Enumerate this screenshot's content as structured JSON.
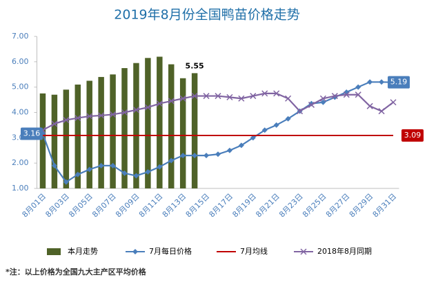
{
  "chart_data": {
    "type": "combo",
    "title": "2019年8月份全国鸭苗价格走势",
    "footnote": "*注：以上价格为全国九大主产区平均价格",
    "categories": [
      "8月01日",
      null,
      "8月03日",
      null,
      "8月05日",
      null,
      "8月07日",
      null,
      "8月09日",
      null,
      "8月11日",
      null,
      "8月13日",
      null,
      "8月15日",
      null,
      "8月17日",
      null,
      "8月19日",
      null,
      "8月21日",
      null,
      "8月23日",
      null,
      "8月25日",
      null,
      "8月27日",
      null,
      "8月29日",
      null,
      "8月31日"
    ],
    "ylim": [
      1,
      7
    ],
    "yticks": [
      {
        "value": 1,
        "label": "1.00"
      },
      {
        "value": 2,
        "label": "2.00"
      },
      {
        "value": 3,
        "label": "3.00"
      },
      {
        "value": 4,
        "label": "4.00"
      },
      {
        "value": 5,
        "label": "5.00"
      },
      {
        "value": 6,
        "label": "6.00"
      },
      {
        "value": 7,
        "label": "7.00"
      }
    ],
    "grid": false,
    "series": [
      {
        "name": "本月走势",
        "type": "bar",
        "color": "#4f6228",
        "values": [
          4.75,
          4.7,
          4.9,
          5.1,
          5.25,
          5.4,
          5.5,
          5.75,
          5.95,
          6.15,
          6.2,
          5.9,
          5.35,
          5.55,
          null,
          null,
          null,
          null,
          null,
          null,
          null,
          null,
          null,
          null,
          null,
          null,
          null,
          null,
          null,
          null,
          null
        ],
        "value_labels": [
          null,
          null,
          null,
          null,
          null,
          null,
          null,
          null,
          null,
          null,
          null,
          null,
          null,
          "5.55",
          null,
          null,
          null,
          null,
          null,
          null,
          null,
          null,
          null,
          null,
          null,
          null,
          null,
          null,
          null,
          null,
          null
        ]
      },
      {
        "name": "7月每日价格",
        "type": "line",
        "marker": "diamond",
        "color": "#4a7ebb",
        "values": [
          3.16,
          1.9,
          1.25,
          1.55,
          1.75,
          1.9,
          1.9,
          1.6,
          1.5,
          1.65,
          1.85,
          2.1,
          2.3,
          2.3,
          2.3,
          2.35,
          2.5,
          2.7,
          3.0,
          3.3,
          3.5,
          3.75,
          4.05,
          4.35,
          4.4,
          4.6,
          4.8,
          5.0,
          5.2,
          5.2,
          5.19
        ],
        "value_labels": [
          "3.16",
          null,
          null,
          null,
          null,
          null,
          null,
          null,
          null,
          null,
          null,
          null,
          null,
          null,
          null,
          null,
          null,
          null,
          null,
          null,
          null,
          null,
          null,
          null,
          null,
          null,
          null,
          null,
          null,
          null,
          "5.19"
        ]
      },
      {
        "name": "7月均线",
        "type": "line",
        "marker": "none",
        "color": "#c00000",
        "values": [
          3.09,
          3.09,
          3.09,
          3.09,
          3.09,
          3.09,
          3.09,
          3.09,
          3.09,
          3.09,
          3.09,
          3.09,
          3.09,
          3.09,
          3.09,
          3.09,
          3.09,
          3.09,
          3.09,
          3.09,
          3.09,
          3.09,
          3.09,
          3.09,
          3.09,
          3.09,
          3.09,
          3.09,
          3.09,
          3.09,
          3.09
        ],
        "value_labels": [
          null,
          null,
          null,
          null,
          null,
          null,
          null,
          null,
          null,
          null,
          null,
          null,
          null,
          null,
          null,
          null,
          null,
          null,
          null,
          null,
          null,
          null,
          null,
          null,
          null,
          null,
          null,
          null,
          null,
          null,
          "3.09"
        ]
      },
      {
        "name": "2018年8月同期",
        "type": "line",
        "marker": "x",
        "color": "#8064a2",
        "values": [
          3.3,
          3.55,
          3.7,
          3.78,
          3.85,
          3.88,
          3.92,
          4.0,
          4.1,
          4.2,
          4.35,
          4.45,
          4.55,
          4.65,
          4.65,
          4.65,
          4.6,
          4.55,
          4.65,
          4.75,
          4.75,
          4.55,
          4.05,
          4.3,
          4.55,
          4.65,
          4.7,
          4.7,
          4.25,
          4.05,
          4.4
        ]
      }
    ]
  }
}
